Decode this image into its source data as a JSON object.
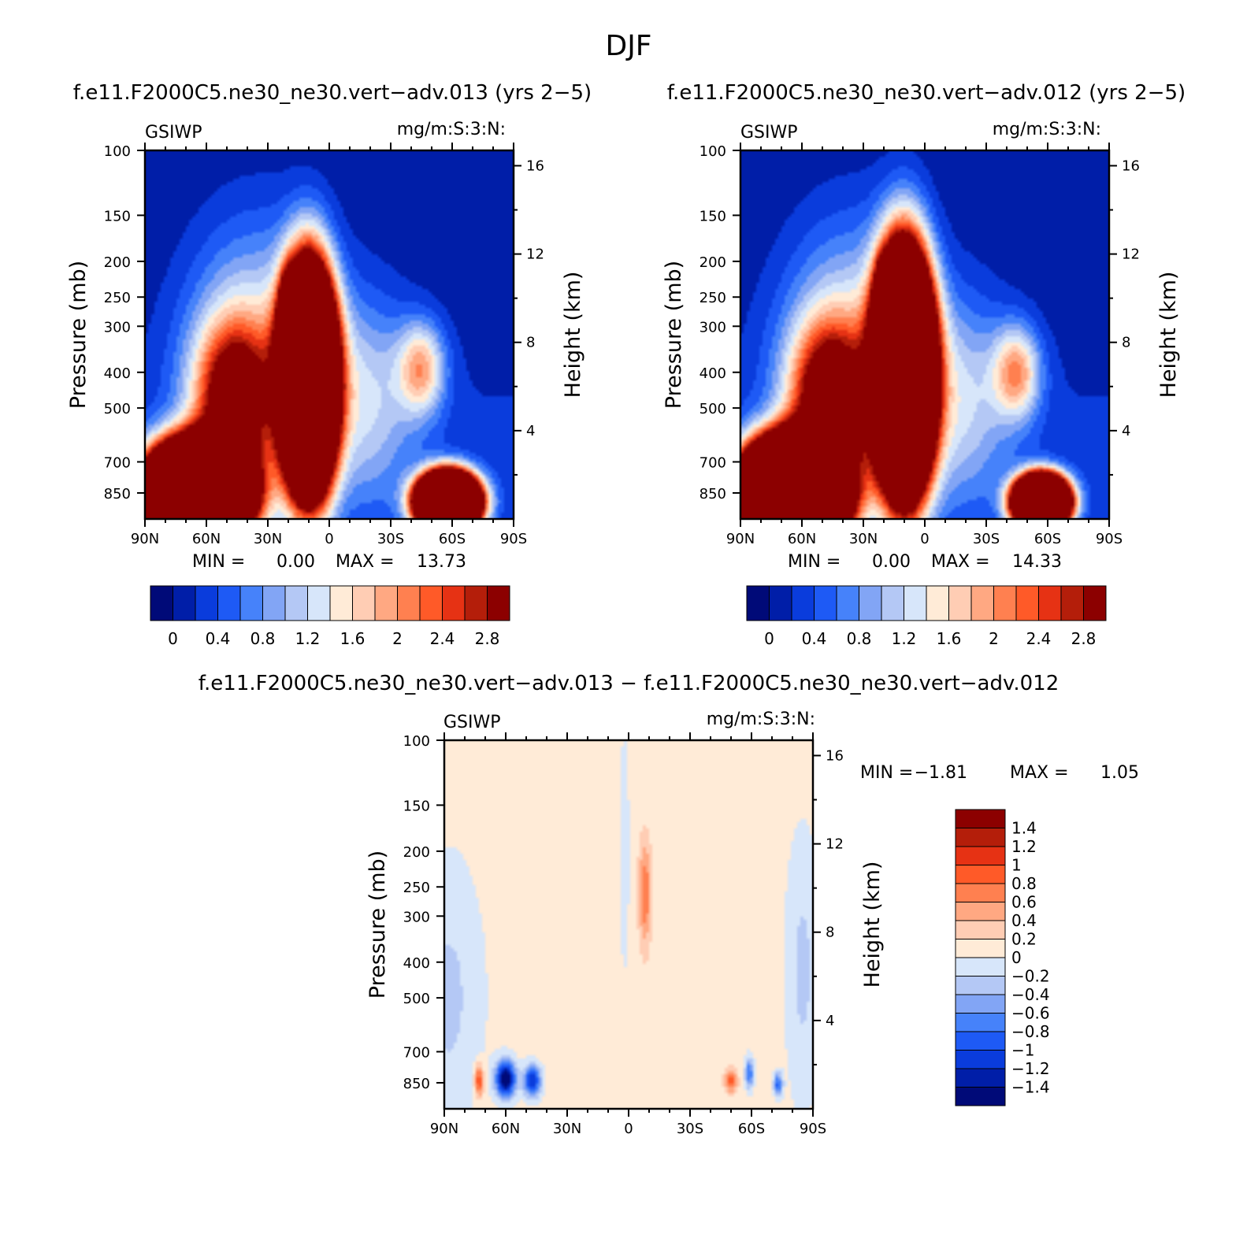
{
  "figure": {
    "title": "DJF",
    "colors": {
      "seq": [
        "#000a78",
        "#001ea8",
        "#0a3cdc",
        "#1e5af5",
        "#4682fa",
        "#82a5f5",
        "#b4c8f5",
        "#d7e6fa",
        "#ffebd7",
        "#ffcdb4",
        "#ffa882",
        "#ff8050",
        "#ff5a28",
        "#e63214",
        "#b41e0a",
        "#8c0000"
      ],
      "diff": [
        "#000a78",
        "#001ea8",
        "#0a3cdc",
        "#1e5af5",
        "#4682fa",
        "#82a5f5",
        "#b4c8f5",
        "#d7e6fa",
        "#ffebd7",
        "#ffcdb4",
        "#ffa882",
        "#ff8050",
        "#ff5a28",
        "#e63214",
        "#b41e0a",
        "#8c0000"
      ]
    }
  },
  "chart_data": [
    {
      "type": "heatmap",
      "title": "f.e11.F2000C5.ne30_ne30.vert−adv.013 (yrs 2−5)",
      "left_label": "GSIWP",
      "right_label": "mg/m:S:3:N:",
      "xlabel": "",
      "ylabel": "Pressure (mb)",
      "y2label": "Height (km)",
      "x_ticks": [
        "90N",
        "60N",
        "30N",
        "0",
        "30S",
        "60S",
        "90S"
      ],
      "y_ticks": [
        "100",
        "150",
        "200",
        "250",
        "300",
        "400",
        "500",
        "700",
        "850"
      ],
      "y_tick_values": [
        100,
        150,
        200,
        250,
        300,
        400,
        500,
        700,
        850
      ],
      "y2_ticks": [
        "16",
        "12",
        "8",
        "4"
      ],
      "y2_tick_values": [
        16,
        12,
        8,
        4
      ],
      "ylim": [
        100,
        1000
      ],
      "min_label": "MIN =",
      "min_value": "0.00",
      "max_label": "MAX =",
      "max_value": "13.73",
      "colorbar_labels": [
        "0",
        "0.4",
        "0.8",
        "1.2",
        "1.6",
        "2",
        "2.4",
        "2.8"
      ],
      "levels": [
        0,
        0.2,
        0.4,
        0.6,
        0.8,
        1,
        1.2,
        1.4,
        1.6,
        1.8,
        2,
        2.2,
        2.4,
        2.6,
        2.8
      ],
      "field": [
        {
          "lat": 10,
          "p": 420,
          "a": 16,
          "sl": 8,
          "sp": 0.42
        },
        {
          "lat": 20,
          "p": 290,
          "a": 3,
          "sl": 3,
          "sp": 0.18
        },
        {
          "lat": 65,
          "p": 860,
          "a": 20,
          "sl": 15,
          "sp": 0.19
        },
        {
          "lat": 47,
          "p": 480,
          "a": 3,
          "sl": 13,
          "sp": 0.33
        },
        {
          "lat": -58,
          "p": 900,
          "a": 18,
          "sl": 9,
          "sp": 0.11
        },
        {
          "lat": -45,
          "p": 390,
          "a": 1.6,
          "sl": 8,
          "sp": 0.2
        },
        {
          "lat": -18,
          "p": 470,
          "a": 1.0,
          "sl": 17,
          "sp": 0.45
        },
        {
          "lat": 35,
          "p": 330,
          "a": 1.2,
          "sl": 24,
          "sp": 0.55
        }
      ]
    },
    {
      "type": "heatmap",
      "title": "f.e11.F2000C5.ne30_ne30.vert−adv.012 (yrs 2−5)",
      "left_label": "GSIWP",
      "right_label": "mg/m:S:3:N:",
      "xlabel": "",
      "ylabel": "Pressure (mb)",
      "y2label": "Height (km)",
      "x_ticks": [
        "90N",
        "60N",
        "30N",
        "0",
        "30S",
        "60S",
        "90S"
      ],
      "y_ticks": [
        "100",
        "150",
        "200",
        "250",
        "300",
        "400",
        "500",
        "700",
        "850"
      ],
      "y_tick_values": [
        100,
        150,
        200,
        250,
        300,
        400,
        500,
        700,
        850
      ],
      "y2_ticks": [
        "16",
        "12",
        "8",
        "4"
      ],
      "y2_tick_values": [
        16,
        12,
        8,
        4
      ],
      "ylim": [
        100,
        1000
      ],
      "min_label": "MIN =",
      "min_value": "0.00",
      "max_label": "MAX =",
      "max_value": "14.33",
      "colorbar_labels": [
        "0",
        "0.4",
        "0.8",
        "1.2",
        "1.6",
        "2",
        "2.4",
        "2.8"
      ],
      "levels": [
        0,
        0.2,
        0.4,
        0.6,
        0.8,
        1,
        1.2,
        1.4,
        1.6,
        1.8,
        2,
        2.2,
        2.4,
        2.6,
        2.8
      ],
      "field": [
        {
          "lat": 10,
          "p": 400,
          "a": 17,
          "sl": 8.5,
          "sp": 0.45
        },
        {
          "lat": 20,
          "p": 280,
          "a": 4,
          "sl": 3,
          "sp": 0.18
        },
        {
          "lat": 65,
          "p": 860,
          "a": 21,
          "sl": 15,
          "sp": 0.2
        },
        {
          "lat": 47,
          "p": 480,
          "a": 3.2,
          "sl": 13,
          "sp": 0.33
        },
        {
          "lat": -57,
          "p": 900,
          "a": 17,
          "sl": 8,
          "sp": 0.1
        },
        {
          "lat": -45,
          "p": 400,
          "a": 1.7,
          "sl": 8,
          "sp": 0.2
        },
        {
          "lat": -18,
          "p": 470,
          "a": 1.0,
          "sl": 17,
          "sp": 0.45
        },
        {
          "lat": 35,
          "p": 330,
          "a": 1.2,
          "sl": 24,
          "sp": 0.55
        }
      ]
    },
    {
      "type": "heatmap",
      "title": "f.e11.F2000C5.ne30_ne30.vert−adv.013 − f.e11.F2000C5.ne30_ne30.vert−adv.012",
      "left_label": "GSIWP",
      "right_label": "mg/m:S:3:N:",
      "xlabel": "",
      "ylabel": "Pressure (mb)",
      "y2label": "Height (km)",
      "x_ticks": [
        "90N",
        "60N",
        "30N",
        "0",
        "30S",
        "60S",
        "90S"
      ],
      "y_ticks": [
        "100",
        "150",
        "200",
        "250",
        "300",
        "400",
        "500",
        "700",
        "850"
      ],
      "y_tick_values": [
        100,
        150,
        200,
        250,
        300,
        400,
        500,
        700,
        850
      ],
      "y2_ticks": [
        "16",
        "12",
        "8",
        "4"
      ],
      "y2_tick_values": [
        16,
        12,
        8,
        4
      ],
      "ylim": [
        100,
        1000
      ],
      "min_label": "MIN =",
      "min_value": "−1.81",
      "max_label": "MAX =",
      "max_value": "1.05",
      "colorbar_labels": [
        "1.4",
        "1.2",
        "1",
        "0.8",
        "0.6",
        "0.4",
        "0.2",
        "0",
        "−0.2",
        "−0.4",
        "−0.6",
        "−0.8",
        "−1",
        "−1.2",
        "−1.4"
      ],
      "levels": [
        -1.4,
        -1.2,
        -1,
        -0.8,
        -0.6,
        -0.4,
        -0.2,
        0,
        0.2,
        0.4,
        0.6,
        0.8,
        1,
        1.2,
        1.4
      ],
      "background": 0.1,
      "field": [
        {
          "lat": 60,
          "p": 830,
          "a": -1.7,
          "sl": 3.5,
          "sp": 0.08
        },
        {
          "lat": 47,
          "p": 840,
          "a": -1.3,
          "sl": 3,
          "sp": 0.07
        },
        {
          "lat": 73,
          "p": 840,
          "a": 1.0,
          "sl": 1.5,
          "sp": 0.07
        },
        {
          "lat": -8,
          "p": 260,
          "a": 0.7,
          "sl": 2,
          "sp": 0.22
        },
        {
          "lat": -50,
          "p": 840,
          "a": 0.8,
          "sl": 2,
          "sp": 0.05
        },
        {
          "lat": -59,
          "p": 800,
          "a": -0.9,
          "sl": 1.5,
          "sp": 0.07
        },
        {
          "lat": -73,
          "p": 860,
          "a": -1.0,
          "sl": 1.5,
          "sp": 0.05
        },
        {
          "lat": 88,
          "p": 500,
          "a": -0.35,
          "sl": 12,
          "sp": 0.6
        },
        {
          "lat": -85,
          "p": 420,
          "a": -0.35,
          "sl": 6,
          "sp": 0.6
        },
        {
          "lat": 2,
          "p": 200,
          "a": -0.3,
          "sl": 1.5,
          "sp": 0.5
        }
      ]
    }
  ]
}
